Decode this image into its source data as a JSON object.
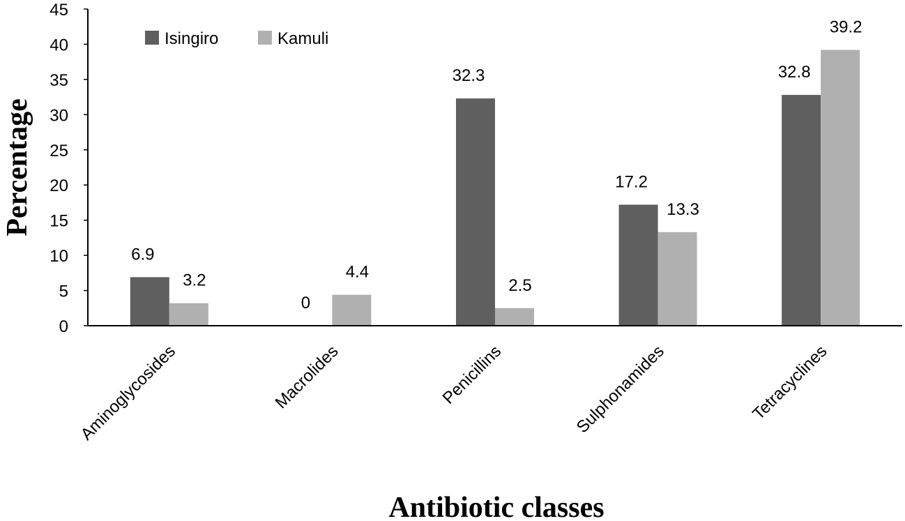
{
  "chart_data": {
    "type": "bar",
    "title": "",
    "xlabel": "Antibiotic classes",
    "ylabel": "Percentage",
    "ylim": [
      0,
      45
    ],
    "ytick_step": 5,
    "yticks": [
      "0",
      "5",
      "10",
      "15",
      "20",
      "25",
      "30",
      "35",
      "40",
      "45"
    ],
    "categories": [
      "Aminoglycosides",
      "Macrolides",
      "Penicillins",
      "Sulphonamides",
      "Tetracyclines"
    ],
    "series": [
      {
        "name": "Isingiro",
        "color": "#5f5f5f",
        "values": [
          6.9,
          0,
          32.3,
          17.2,
          32.8
        ],
        "labels": [
          "6.9",
          "0",
          "32.3",
          "17.2",
          "32.8"
        ]
      },
      {
        "name": "Kamuli",
        "color": "#b0b0b0",
        "values": [
          3.2,
          4.4,
          2.5,
          13.3,
          39.2
        ],
        "labels": [
          "3.2",
          "4.4",
          "2.5",
          "13.3",
          "39.2"
        ]
      }
    ],
    "legend": "top-left",
    "grid": false
  }
}
